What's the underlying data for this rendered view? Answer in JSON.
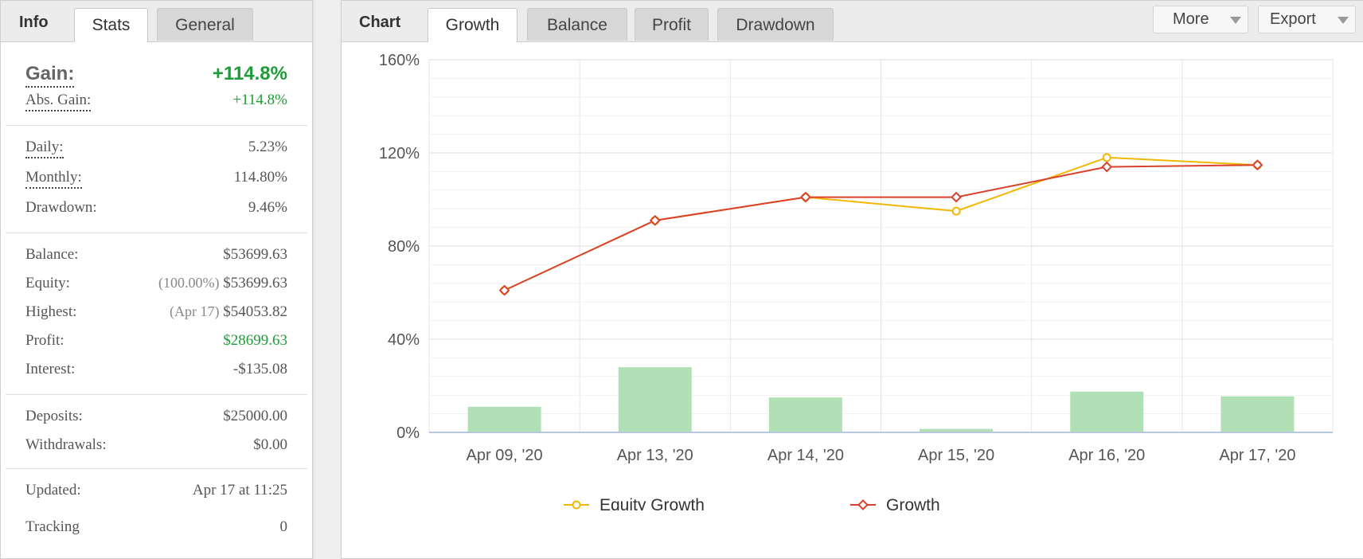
{
  "left": {
    "tab_title": "Info",
    "tabs": [
      "Stats",
      "General"
    ],
    "gain_label": "Gain:",
    "gain_value": "+114.8%",
    "abs_gain_label": "Abs. Gain:",
    "abs_gain_value": "+114.8%",
    "daily_label": "Daily:",
    "daily_value": "5.23%",
    "monthly_label": "Monthly:",
    "monthly_value": "114.80%",
    "drawdown_label": "Drawdown:",
    "drawdown_value": "9.46%",
    "balance_label": "Balance:",
    "balance_value": "$53699.63",
    "equity_label": "Equity:",
    "equity_pct": "(100.00%)",
    "equity_value": "$53699.63",
    "highest_label": "Highest:",
    "highest_date": "(Apr 17)",
    "highest_value": "$54053.82",
    "profit_label": "Profit:",
    "profit_value": "$28699.63",
    "interest_label": "Interest:",
    "interest_value": "-$135.08",
    "deposits_label": "Deposits:",
    "deposits_value": "$25000.00",
    "withdrawals_label": "Withdrawals:",
    "withdrawals_value": "$0.00",
    "updated_label": "Updated:",
    "updated_value": "Apr 17 at 11:25",
    "tracking_label": "Tracking",
    "tracking_value": "0"
  },
  "right": {
    "tab_title": "Chart",
    "tabs": [
      "Growth",
      "Balance",
      "Profit",
      "Drawdown"
    ],
    "more_label": "More",
    "export_label": "Export"
  },
  "colors": {
    "equity": "#f2b705",
    "growth": "#d9412c",
    "bars": "#b2e0b6",
    "gain_green": "#1e9c37"
  },
  "chart_data": {
    "type": "line",
    "categories": [
      "Apr 09, '20",
      "Apr 13, '20",
      "Apr 14, '20",
      "Apr 15, '20",
      "Apr 16, '20",
      "Apr 17, '20"
    ],
    "y_ticks": [
      "0%",
      "40%",
      "80%",
      "120%",
      "160%"
    ],
    "ylim": [
      0,
      160
    ],
    "grid": true,
    "legend_position": "bottom",
    "series": [
      {
        "name": "Equity Growth",
        "type": "line",
        "marker": "circle",
        "values": [
          61,
          91,
          101,
          95,
          118,
          114.8
        ]
      },
      {
        "name": "Growth",
        "type": "line",
        "marker": "diamond",
        "values": [
          61,
          91,
          101,
          101,
          114,
          114.8
        ]
      },
      {
        "type": "bar",
        "values": [
          11,
          28,
          15,
          1.5,
          17.5,
          15.5
        ]
      }
    ]
  }
}
